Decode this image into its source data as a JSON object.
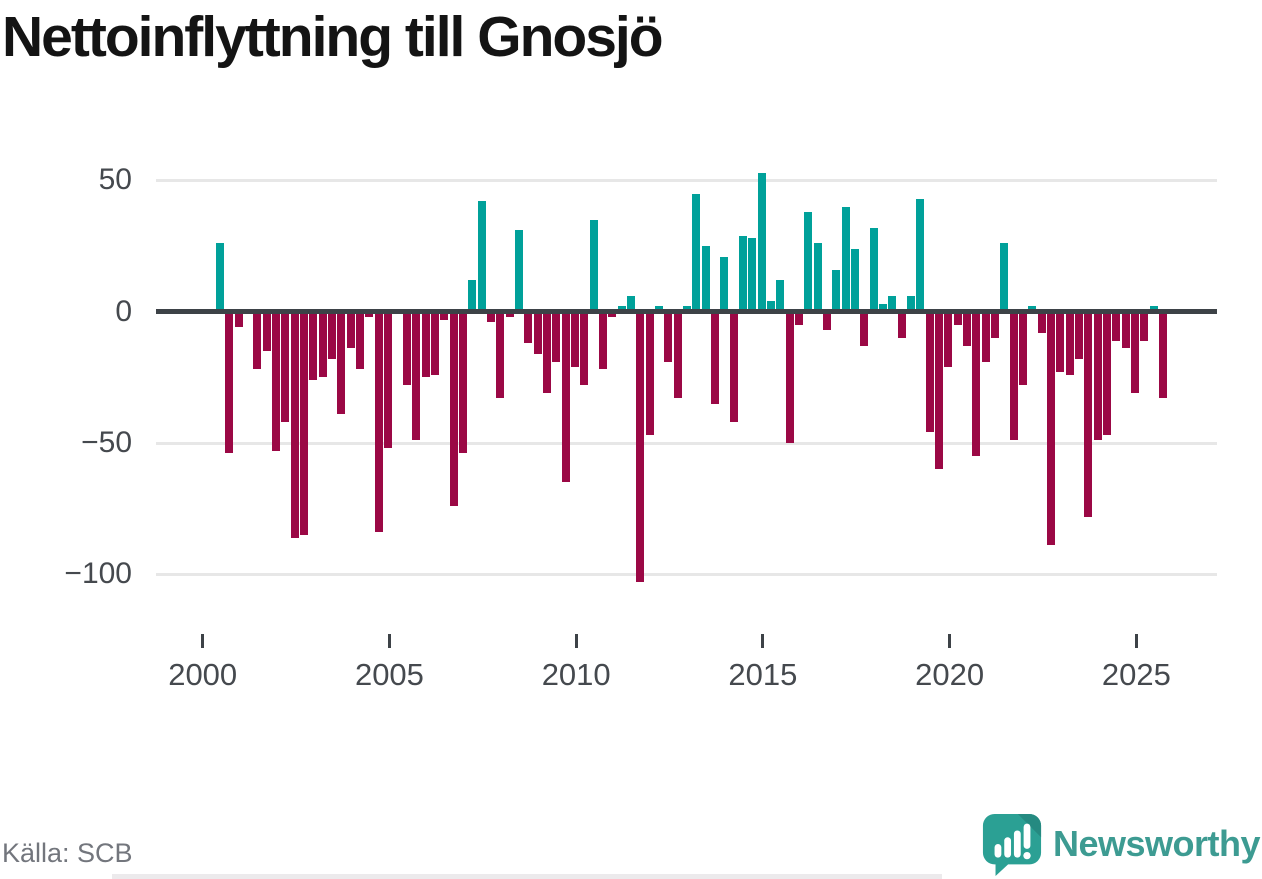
{
  "title": "Nettoinflyttning till Gnosjö",
  "source": "Källa: SCB",
  "branding": {
    "name": "Newsworthy",
    "teal": "#3d9b92",
    "icon_fill": "#2ba094",
    "icon_fold": "#258a81"
  },
  "chart_data": {
    "type": "bar",
    "title": "Nettoinflyttning till Gnosjö",
    "xlabel": "",
    "ylabel": "",
    "frequency": "quarterly",
    "start_period": "2000Q1",
    "end_period": "2025Q3",
    "x_tick_labels": [
      "2000",
      "2005",
      "2010",
      "2015",
      "2020",
      "2025"
    ],
    "y_ticks": [
      50,
      0,
      -50,
      -100
    ],
    "y_tick_labels": [
      "50",
      "0",
      "−50",
      "−100"
    ],
    "ylim": [
      -125,
      62
    ],
    "grid": "horizontal",
    "legend": "none",
    "colors": {
      "positive": "#00a19a",
      "negative": "#9b0845"
    },
    "values": [
      1,
      26,
      -54,
      -6,
      1,
      -22,
      -15,
      -53,
      -42,
      -86,
      -85,
      -26,
      -25,
      -18,
      -39,
      -14,
      -22,
      -2,
      -84,
      -52,
      0,
      -28,
      -49,
      -25,
      -24,
      -3,
      -74,
      -54,
      12,
      42,
      -4,
      -33,
      -2,
      31,
      -12,
      -16,
      -31,
      -19,
      -65,
      -21,
      -28,
      35,
      -22,
      -2,
      2,
      6,
      -103,
      -47,
      2,
      -19,
      -33,
      2,
      45,
      25,
      -35,
      21,
      -42,
      29,
      28,
      53,
      4,
      12,
      -50,
      -5,
      38,
      26,
      -7,
      16,
      40,
      24,
      -13,
      32,
      3,
      6,
      -10,
      6,
      43,
      -46,
      -60,
      -21,
      -5,
      -13,
      -55,
      -19,
      -10,
      26,
      -49,
      -28,
      2,
      -8,
      -89,
      -23,
      -24,
      -18,
      -78,
      -49,
      -47,
      -11,
      -14,
      -31,
      -11,
      2,
      -33
    ]
  }
}
